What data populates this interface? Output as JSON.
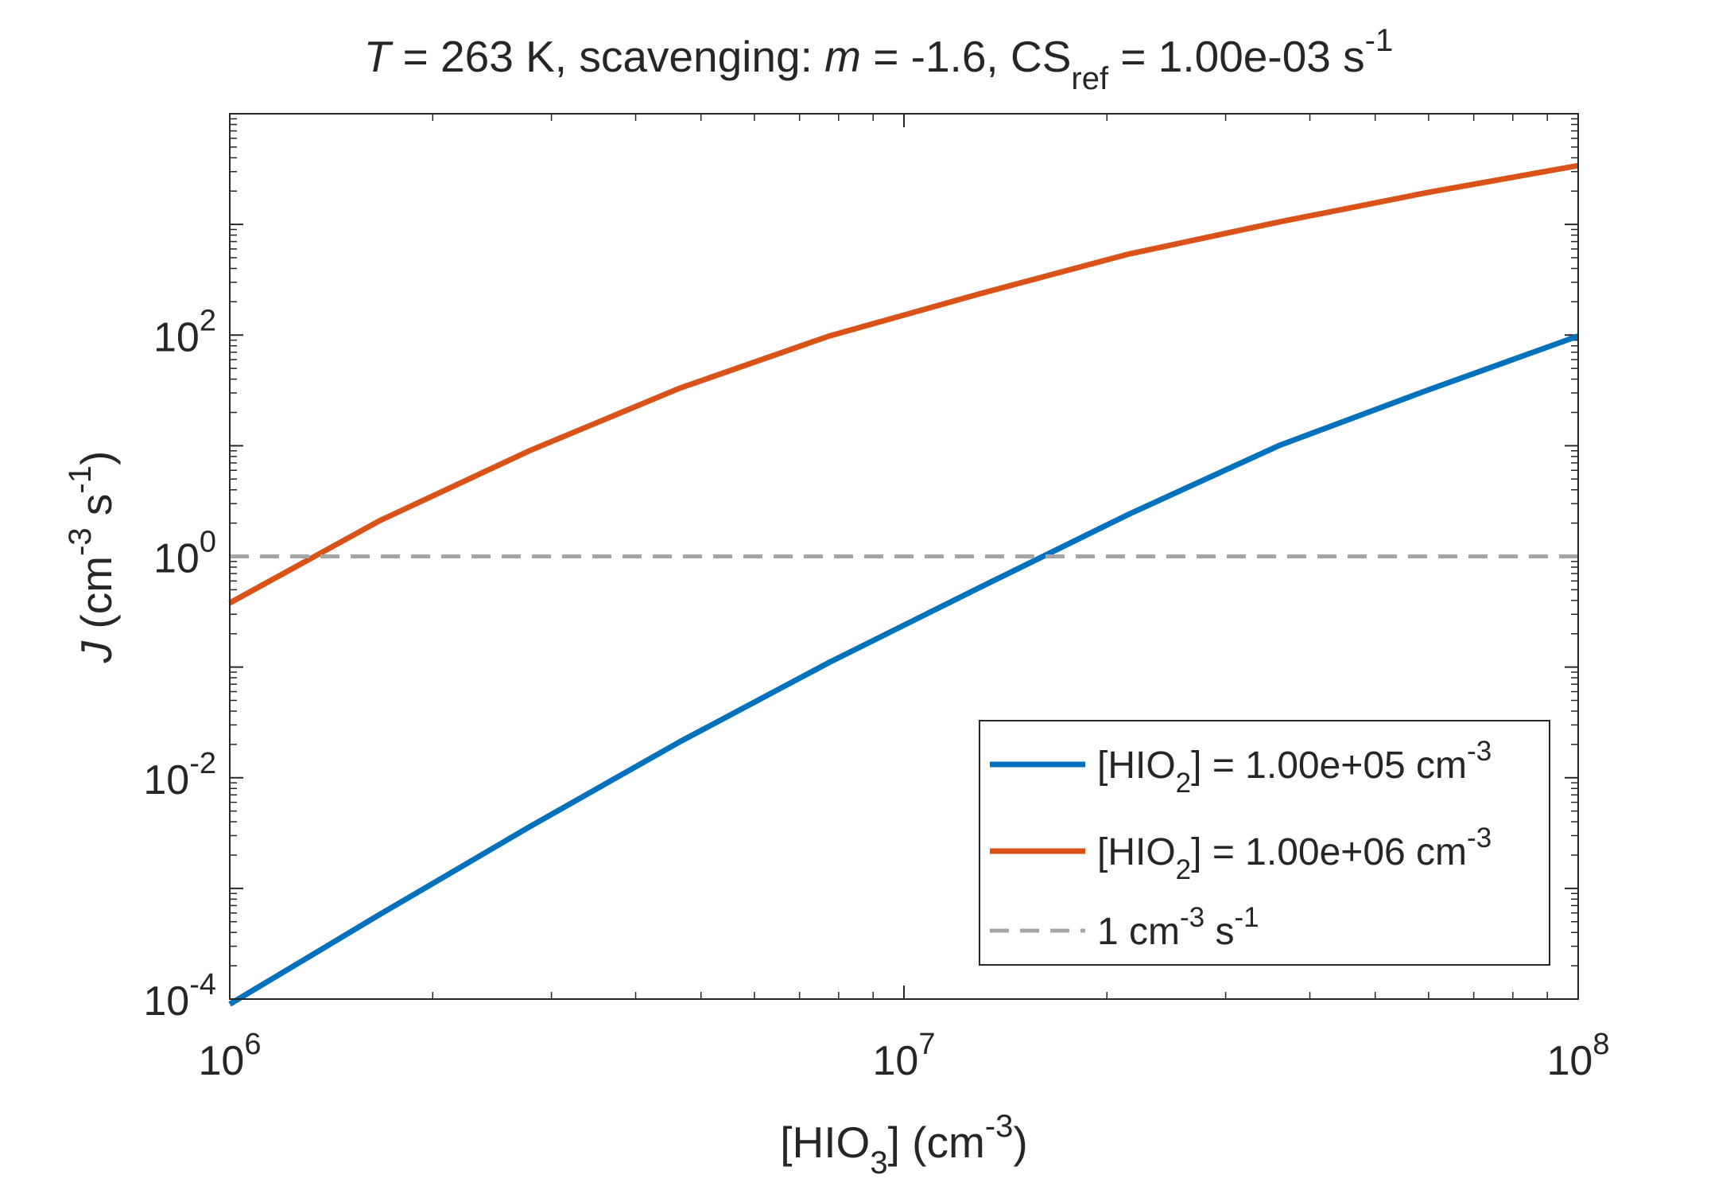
{
  "chart_data": {
    "type": "line",
    "title": {
      "var": "T",
      "eq1": " = 263 K, scavenging: ",
      "var2": "m",
      "eq2": " = -1.6, CS",
      "sub": "ref",
      "eq3": " = 1.00e-03 s",
      "sup": "-1"
    },
    "xlabel": {
      "main": "[HIO",
      "sub": "3",
      "post": "] (cm",
      "sup": "-3",
      "end": ")"
    },
    "ylabel": {
      "var": "J",
      "pre": " (cm",
      "sup1": "-3",
      "mid": " s",
      "sup2": "-1",
      "end": ")"
    },
    "xscale": "log",
    "yscale": "log",
    "xlim": [
      1000000,
      100000000
    ],
    "ylim": [
      0.0001,
      10000
    ],
    "x_ticks": [
      {
        "value": 1000000,
        "base": "10",
        "exp": "6"
      },
      {
        "value": 10000000,
        "base": "10",
        "exp": "7"
      },
      {
        "value": 100000000,
        "base": "10",
        "exp": "8"
      }
    ],
    "y_ticks": [
      {
        "value": 0.0001,
        "base": "10",
        "exp": "-4"
      },
      {
        "value": 0.01,
        "base": "10",
        "exp": "-2"
      },
      {
        "value": 1,
        "base": "10",
        "exp": "0"
      },
      {
        "value": 100,
        "base": "10",
        "exp": "2"
      }
    ],
    "grid": false,
    "legend_position": "bottom-right",
    "series": [
      {
        "name": {
          "pre": "[HIO",
          "sub": "2",
          "post": "] = 1.00e+05 cm",
          "sup": "-3"
        },
        "color": "#0072BD",
        "dash": "solid",
        "x": [
          1000000,
          1668000,
          2783000,
          4642000,
          7743000,
          12920000,
          21540000,
          35940000,
          59950000,
          100000000
        ],
        "y": [
          9e-05,
          0.00058,
          0.0036,
          0.021,
          0.11,
          0.52,
          2.4,
          10,
          32,
          98
        ]
      },
      {
        "name": {
          "pre": "[HIO",
          "sub": "2",
          "post": "] = 1.00e+06 cm",
          "sup": "-3"
        },
        "color": "#D95319",
        "dash": "solid",
        "x": [
          1000000,
          1668000,
          2783000,
          4642000,
          7743000,
          12920000,
          21540000,
          35940000,
          59950000,
          100000000
        ],
        "y": [
          0.38,
          2.1,
          9,
          33,
          98,
          235,
          540,
          1050,
          1950,
          3400
        ]
      },
      {
        "name": {
          "pre": "1 cm",
          "sup": "-3",
          "post": " s",
          "sup2": "-1"
        },
        "color": "#A6A6A6",
        "dash": "dashed",
        "x": [
          1000000,
          100000000
        ],
        "y": [
          1,
          1
        ]
      }
    ]
  }
}
